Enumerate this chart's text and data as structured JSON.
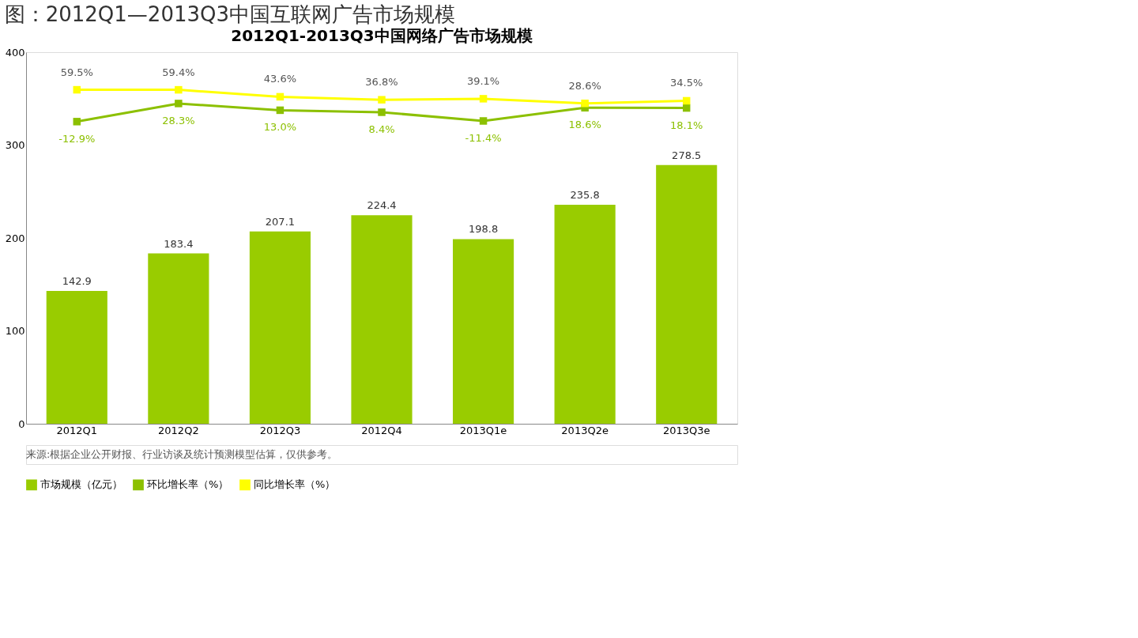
{
  "chart_data": {
    "type": "bar",
    "title": "图：2012Q1—2013Q3中国互联网广告市场规模",
    "subtitle": "2012Q1-2013Q3中国网络广告市场规模",
    "categories": [
      "2012Q1",
      "2012Q2",
      "2012Q3",
      "2012Q4",
      "2013Q1e",
      "2013Q2e",
      "2013Q3e"
    ],
    "series": [
      {
        "name": "市场规模（亿元）",
        "color": "#99cc00",
        "values": [
          142.9,
          183.4,
          207.1,
          224.4,
          198.8,
          235.8,
          278.5
        ],
        "value_labels": [
          "142.9",
          "183.4",
          "207.1",
          "224.4",
          "198.8",
          "235.8",
          "278.5"
        ]
      },
      {
        "name": "环比增长率（%）",
        "type": "line",
        "axis": "y2",
        "color": "#8cc000",
        "values": [
          -12.9,
          28.3,
          13.0,
          8.4,
          -11.4,
          18.6,
          18.1
        ],
        "value_labels": [
          "-12.9%",
          "28.3%",
          "13.0%",
          "8.4%",
          "-11.4%",
          "18.6%",
          "18.1%"
        ]
      },
      {
        "name": "同比增长率（%）",
        "type": "line",
        "axis": "y2",
        "color": "#ffff00",
        "values": [
          59.5,
          59.4,
          43.6,
          36.8,
          39.1,
          28.6,
          34.5
        ],
        "value_labels": [
          "59.5%",
          "59.4%",
          "43.6%",
          "36.8%",
          "39.1%",
          "28.6%",
          "34.5%"
        ]
      }
    ],
    "ylim": [
      0,
      400
    ],
    "yticks": [
      0,
      100,
      200,
      300,
      400
    ],
    "y2lim": [
      -700,
      145
    ],
    "marker": "square",
    "legend": "bottom",
    "grid": false,
    "annotations": [
      "来源:根据企业公开财报、行业访谈及统计预测模型估算，仅供参考。"
    ]
  }
}
